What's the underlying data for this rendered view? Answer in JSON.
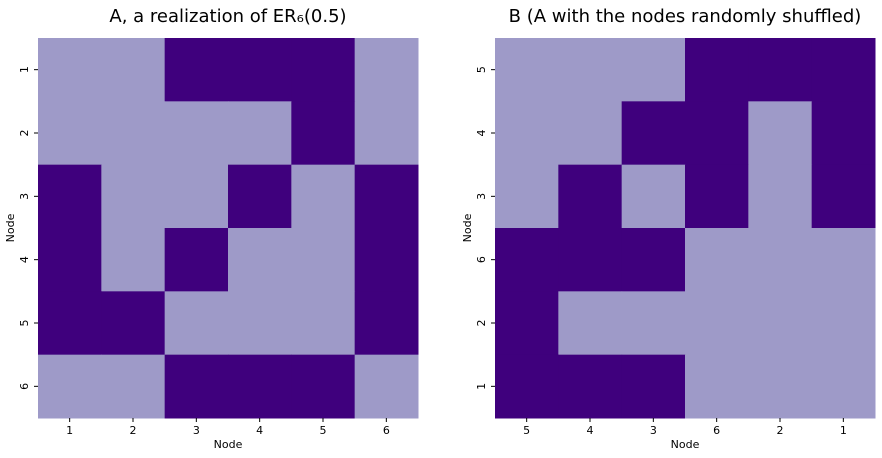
{
  "chart_data": [
    {
      "type": "heatmap",
      "title": "A, a realization of ER₆(0.5)",
      "xlabel": "Node",
      "ylabel": "Node",
      "categories": [
        "1",
        "2",
        "3",
        "4",
        "5",
        "6"
      ],
      "y_categories": [
        "1",
        "2",
        "3",
        "4",
        "5",
        "6"
      ],
      "colors": [
        "#9e9ac8",
        "#3f007d"
      ],
      "values": [
        [
          0,
          0,
          1,
          1,
          1,
          0
        ],
        [
          0,
          0,
          0,
          0,
          1,
          0
        ],
        [
          1,
          0,
          0,
          1,
          0,
          1
        ],
        [
          1,
          0,
          1,
          0,
          0,
          1
        ],
        [
          1,
          1,
          0,
          0,
          0,
          1
        ],
        [
          0,
          0,
          1,
          1,
          1,
          0
        ]
      ]
    },
    {
      "type": "heatmap",
      "title": "B (A with the nodes randomly shuffled)",
      "xlabel": "Node",
      "ylabel": "Node",
      "categories": [
        "5",
        "4",
        "3",
        "6",
        "2",
        "1"
      ],
      "y_categories": [
        "5",
        "4",
        "3",
        "6",
        "2",
        "1"
      ],
      "colors": [
        "#9e9ac8",
        "#3f007d"
      ],
      "values": [
        [
          0,
          0,
          0,
          1,
          1,
          1
        ],
        [
          0,
          0,
          1,
          1,
          0,
          1
        ],
        [
          0,
          1,
          0,
          1,
          0,
          1
        ],
        [
          1,
          1,
          1,
          0,
          0,
          0
        ],
        [
          1,
          0,
          0,
          0,
          0,
          0
        ],
        [
          1,
          1,
          1,
          0,
          0,
          0
        ]
      ]
    }
  ]
}
